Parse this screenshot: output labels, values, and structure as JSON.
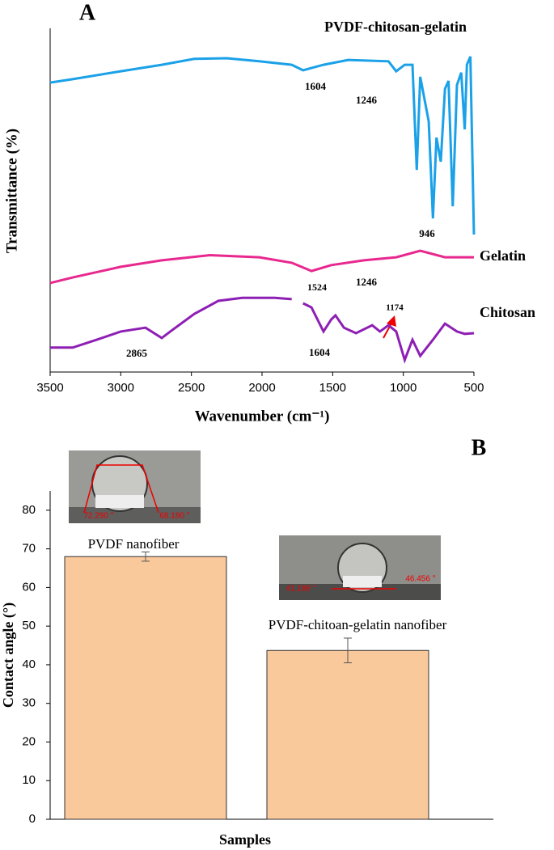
{
  "chart_data": [
    {
      "type": "line",
      "panel": "A",
      "xlabel": "Wavenumber (cm⁻¹)",
      "ylabel": "Transmittance (%)",
      "xlim": [
        3500,
        500
      ],
      "xticks": [
        3500,
        3000,
        2500,
        2000,
        1500,
        1000,
        500
      ],
      "ylim": [
        0,
        100
      ],
      "series": [
        {
          "name": "PVDF-chitosan-gelatin",
          "color": "#1ba1e8",
          "x": [
            3500,
            3340,
            3000,
            2710,
            2480,
            2250,
            2020,
            1790,
            1710,
            1565,
            1390,
            1105,
            1050,
            990,
            935,
            905,
            880,
            820,
            790,
            765,
            735,
            705,
            680,
            650,
            620,
            590,
            565,
            550,
            525,
            500
          ],
          "values": [
            84.2,
            85.2,
            87.5,
            89.4,
            91.1,
            91.3,
            90.4,
            89.4,
            87.8,
            89.4,
            90.8,
            90.4,
            87.5,
            89.4,
            89.4,
            58.8,
            85.9,
            72.9,
            44.7,
            68.2,
            61.2,
            82.4,
            84.7,
            48.2,
            83.5,
            87.1,
            70.6,
            89.4,
            91.8,
            40.0
          ]
        },
        {
          "name": "Gelatin",
          "color": "#e8288f",
          "x": [
            3500,
            3340,
            3000,
            2710,
            2370,
            2020,
            1790,
            1650,
            1510,
            1280,
            1050,
            880,
            705,
            500
          ],
          "values": [
            25.9,
            27.5,
            30.6,
            32.5,
            34.0,
            33.4,
            31.8,
            29.4,
            31.1,
            32.5,
            33.4,
            35.3,
            33.4,
            33.4
          ]
        },
        {
          "name": "Chitosan",
          "color": "#8e1fb4",
          "x": [
            3500,
            3340,
            3170,
            3000,
            2825,
            2710,
            2650,
            2480,
            2310,
            2140,
            1910,
            1790,
            1760,
            1710,
            1650,
            1565,
            1510,
            1480,
            1420,
            1335,
            1220,
            1165,
            1105,
            1050,
            990,
            935,
            880,
            790,
            705,
            620,
            565,
            500
          ],
          "values": [
            7.1,
            7.1,
            9.4,
            11.8,
            12.9,
            9.9,
            11.8,
            16.9,
            20.7,
            21.6,
            21.6,
            21.2,
            null,
            20.0,
            18.8,
            11.8,
            15.3,
            16.5,
            12.9,
            11.3,
            13.6,
            11.8,
            13.6,
            11.8,
            3.5,
            9.4,
            4.7,
            9.4,
            14.1,
            11.8,
            11.1,
            11.3
          ]
        }
      ],
      "annotations": [
        "1604",
        "1246",
        "946",
        "1524",
        "1246",
        "1174",
        "2865",
        "1604"
      ]
    },
    {
      "type": "bar",
      "panel": "B",
      "xlabel": "Samples",
      "ylabel": "Contact angle (°)",
      "categories": [
        "PVDF nanofiber",
        "PVDF-chitoan-gelatin nanofiber"
      ],
      "values": [
        68,
        43.7
      ],
      "errors": [
        1.2,
        3.2
      ],
      "color": "#f9c89b",
      "ylim": [
        0,
        85
      ],
      "yticks": [
        0,
        10,
        20,
        30,
        40,
        50,
        60,
        70,
        80
      ],
      "photo_labels": [
        [
          "72.290 °",
          "68.180 °"
        ],
        [
          "41.186 °",
          "46.456 °"
        ]
      ]
    }
  ]
}
